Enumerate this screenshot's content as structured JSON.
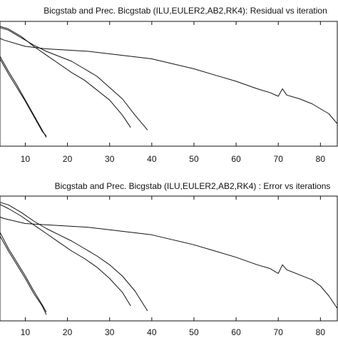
{
  "colors": {
    "line": "#111111",
    "axis": "#111111",
    "background": "#ffffff"
  },
  "chart_data": [
    {
      "type": "line",
      "title": "Bicgstab and Prec. Bicgstab (ILU,EULER2,AB2,RK4): Residual vs iteration",
      "xlabel": "",
      "ylabel": "",
      "xlim": [
        4,
        84
      ],
      "ylim": [
        0,
        1
      ],
      "xticks": [
        10,
        20,
        30,
        40,
        50,
        60,
        70,
        80
      ],
      "y_tick_labels_visible": false,
      "grid": false,
      "series": [
        {
          "x": [
            0,
            2,
            4,
            6,
            8,
            10,
            12,
            14,
            15
          ],
          "y": [
            0.95,
            0.85,
            0.7,
            0.58,
            0.47,
            0.36,
            0.24,
            0.12,
            0.08
          ]
        },
        {
          "x": [
            0,
            2,
            4,
            6,
            8,
            10,
            12,
            14,
            15
          ],
          "y": [
            0.97,
            0.87,
            0.72,
            0.6,
            0.49,
            0.37,
            0.25,
            0.13,
            0.07
          ]
        },
        {
          "x": [
            0,
            3,
            6,
            9,
            12,
            15,
            18,
            21,
            24,
            27,
            30,
            33,
            35
          ],
          "y": [
            0.98,
            0.97,
            0.94,
            0.88,
            0.8,
            0.73,
            0.66,
            0.59,
            0.53,
            0.45,
            0.37,
            0.25,
            0.15
          ]
        },
        {
          "x": [
            0,
            3,
            6,
            9,
            12,
            15,
            18,
            21,
            24,
            27,
            30,
            33,
            36,
            39
          ],
          "y": [
            0.97,
            0.96,
            0.93,
            0.87,
            0.81,
            0.76,
            0.72,
            0.68,
            0.62,
            0.56,
            0.47,
            0.38,
            0.25,
            0.13
          ]
        },
        {
          "x": [
            0,
            5,
            10,
            15,
            20,
            25,
            30,
            35,
            40,
            45,
            50,
            55,
            60,
            65,
            68,
            70,
            71,
            72,
            75,
            78,
            80,
            82,
            84
          ],
          "y": [
            0.92,
            0.85,
            0.8,
            0.78,
            0.77,
            0.76,
            0.74,
            0.72,
            0.7,
            0.66,
            0.62,
            0.57,
            0.52,
            0.46,
            0.43,
            0.4,
            0.46,
            0.41,
            0.38,
            0.34,
            0.3,
            0.26,
            0.18
          ]
        }
      ]
    },
    {
      "type": "line",
      "title": "Bicgstab and Prec. Bicgstab (ILU,EULER2,AB2,RK4) : Error vs iterations",
      "xlabel": "",
      "ylabel": "",
      "xlim": [
        4,
        84
      ],
      "ylim": [
        0,
        1
      ],
      "xticks": [
        10,
        20,
        30,
        40,
        50,
        60,
        70,
        80
      ],
      "y_tick_labels_visible": false,
      "grid": false,
      "series": [
        {
          "x": [
            0,
            2,
            4,
            6,
            8,
            10,
            12,
            14,
            15
          ],
          "y": [
            0.95,
            0.83,
            0.68,
            0.56,
            0.45,
            0.34,
            0.22,
            0.12,
            0.05
          ]
        },
        {
          "x": [
            0,
            2,
            4,
            6,
            8,
            10,
            12,
            14,
            15
          ],
          "y": [
            0.96,
            0.86,
            0.71,
            0.58,
            0.47,
            0.36,
            0.24,
            0.13,
            0.07
          ]
        },
        {
          "x": [
            0,
            3,
            6,
            9,
            12,
            15,
            18,
            21,
            24,
            27,
            30,
            33,
            35
          ],
          "y": [
            0.97,
            0.95,
            0.9,
            0.84,
            0.77,
            0.7,
            0.63,
            0.56,
            0.5,
            0.43,
            0.34,
            0.23,
            0.12
          ]
        },
        {
          "x": [
            0,
            3,
            6,
            9,
            12,
            15,
            18,
            21,
            24,
            27,
            30,
            33,
            36,
            39
          ],
          "y": [
            0.97,
            0.96,
            0.93,
            0.87,
            0.8,
            0.74,
            0.69,
            0.64,
            0.58,
            0.52,
            0.45,
            0.36,
            0.24,
            0.08
          ]
        },
        {
          "x": [
            0,
            5,
            10,
            15,
            20,
            25,
            30,
            35,
            40,
            45,
            50,
            55,
            60,
            65,
            68,
            70,
            71,
            72,
            75,
            78,
            80,
            82,
            84
          ],
          "y": [
            0.88,
            0.82,
            0.78,
            0.77,
            0.76,
            0.75,
            0.73,
            0.71,
            0.69,
            0.65,
            0.61,
            0.56,
            0.51,
            0.45,
            0.42,
            0.38,
            0.45,
            0.41,
            0.37,
            0.33,
            0.28,
            0.2,
            0.1
          ]
        }
      ]
    }
  ]
}
